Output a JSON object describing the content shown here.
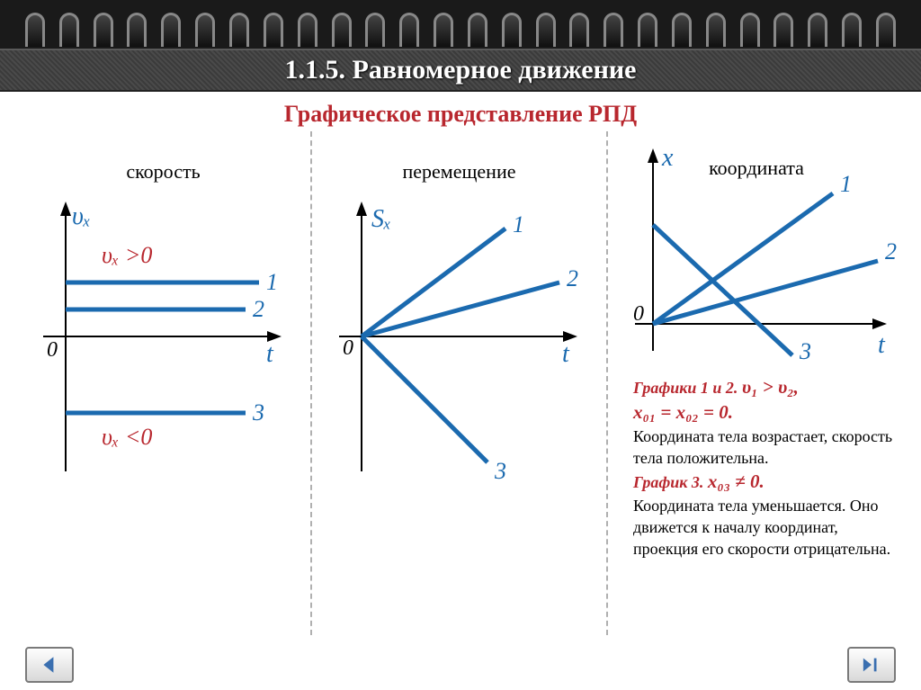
{
  "header": {
    "title": "1.1.5. Равномерное движение",
    "subtitle": "Графическое представление РПД",
    "subtitle_color": "#b8272e",
    "spiral_ring_count": 26
  },
  "columns": {
    "velocity": {
      "label": "скорость",
      "y_axis_label": "υₓ",
      "x_axis_label": "t",
      "origin_label": "0",
      "formula_positive": "υₓ >0",
      "formula_negative": "υₓ <0",
      "series": [
        {
          "label": "1",
          "y": 90,
          "x_end": 215
        },
        {
          "label": "2",
          "y": 120,
          "x_end": 200
        },
        {
          "label": "3",
          "y": 230,
          "x_end": 200
        }
      ],
      "axis_color": "#000000",
      "line_color": "#1b6aaf",
      "formula_color": "#b8272e"
    },
    "displacement": {
      "label": "перемещение",
      "y_axis_label": "Sₓ",
      "x_axis_label": "t",
      "origin_label": "0",
      "series": [
        {
          "label": "1",
          "end_x": 170,
          "end_y": 20
        },
        {
          "label": "2",
          "end_x": 220,
          "end_y": 80
        },
        {
          "label": "3",
          "end_x": 150,
          "end_y": 290
        }
      ],
      "line_color": "#1b6aaf"
    },
    "position": {
      "label": "координата",
      "y_axis_label": "x",
      "x_axis_label": "t",
      "origin_label": "0",
      "series": [
        {
          "label": "1",
          "start_x": 0,
          "start_y": 160,
          "end_x": 190,
          "end_y": 20
        },
        {
          "label": "2",
          "start_x": 0,
          "start_y": 160,
          "end_x": 240,
          "end_y": 95
        },
        {
          "label": "3",
          "start_x": 0,
          "start_y": 55,
          "end_x": 155,
          "end_y": 195
        }
      ],
      "line_color": "#1b6aaf",
      "description": {
        "line1_bold": "Графики 1 и 2.",
        "line1_formula": "υ₁ > υ₂,",
        "line2_formula": "x₀₁ = x₀₂ = 0.",
        "line3": "Координата тела возрастает, скорость тела положительна.",
        "line4_bold": "График 3.",
        "line4_formula": "x₀₃ ≠ 0.",
        "line5": "Координата тела уменьшается. Оно движется к началу координат, проекция его скорости отрицательна."
      }
    }
  },
  "nav": {
    "prev_color": "#3a6fb0",
    "next_color": "#3a6fb0"
  }
}
